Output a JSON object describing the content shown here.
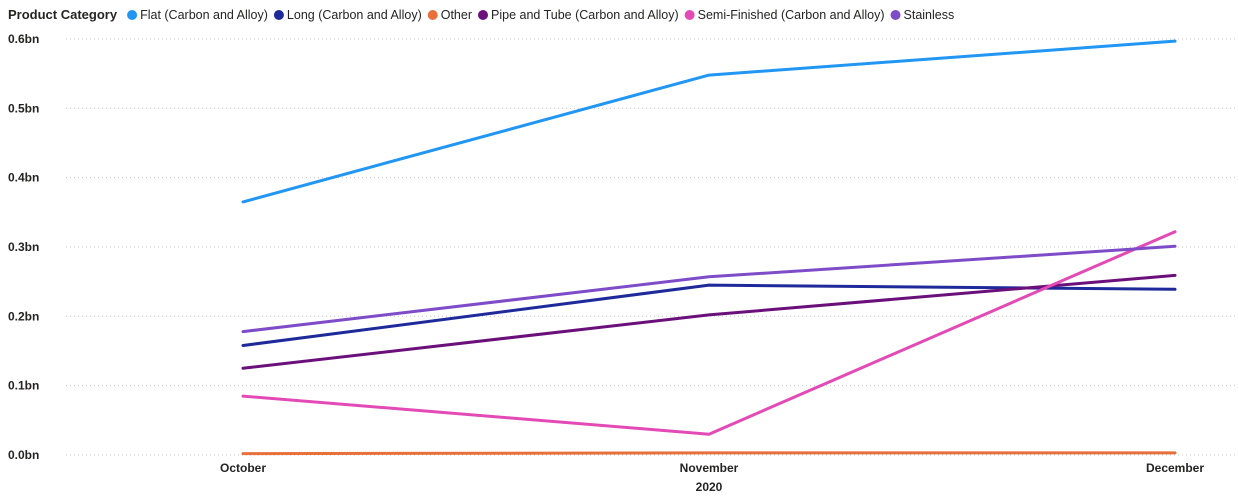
{
  "chart_data": {
    "type": "line",
    "legend": {
      "title": "Product Category",
      "placement": "top-left"
    },
    "categories": [
      "October",
      "November",
      "December"
    ],
    "x_group_label": "2020",
    "ylim": [
      0,
      0.6
    ],
    "y_ticks": [
      {
        "value": 0.0,
        "label": "0.0bn"
      },
      {
        "value": 0.1,
        "label": "0.1bn"
      },
      {
        "value": 0.2,
        "label": "0.2bn"
      },
      {
        "value": 0.3,
        "label": "0.3bn"
      },
      {
        "value": 0.4,
        "label": "0.4bn"
      },
      {
        "value": 0.5,
        "label": "0.5bn"
      },
      {
        "value": 0.6,
        "label": "0.6bn"
      }
    ],
    "y_unit": "bn",
    "grid": true,
    "series": [
      {
        "name": "Flat (Carbon and Alloy)",
        "color": "#2196f3",
        "values": [
          0.365,
          0.548,
          0.597
        ]
      },
      {
        "name": "Long (Carbon and Alloy)",
        "color": "#1e2a9a",
        "values": [
          0.158,
          0.245,
          0.239
        ]
      },
      {
        "name": "Other",
        "color": "#e8703a",
        "values": [
          0.002,
          0.003,
          0.003
        ]
      },
      {
        "name": "Pipe and Tube (Carbon and Alloy)",
        "color": "#6b0f7a",
        "values": [
          0.125,
          0.202,
          0.259
        ]
      },
      {
        "name": "Semi-Finished (Carbon and Alloy)",
        "color": "#e34ab5",
        "values": [
          0.085,
          0.03,
          0.322
        ]
      },
      {
        "name": "Stainless",
        "color": "#7e4cc8",
        "values": [
          0.178,
          0.257,
          0.301
        ]
      }
    ]
  }
}
